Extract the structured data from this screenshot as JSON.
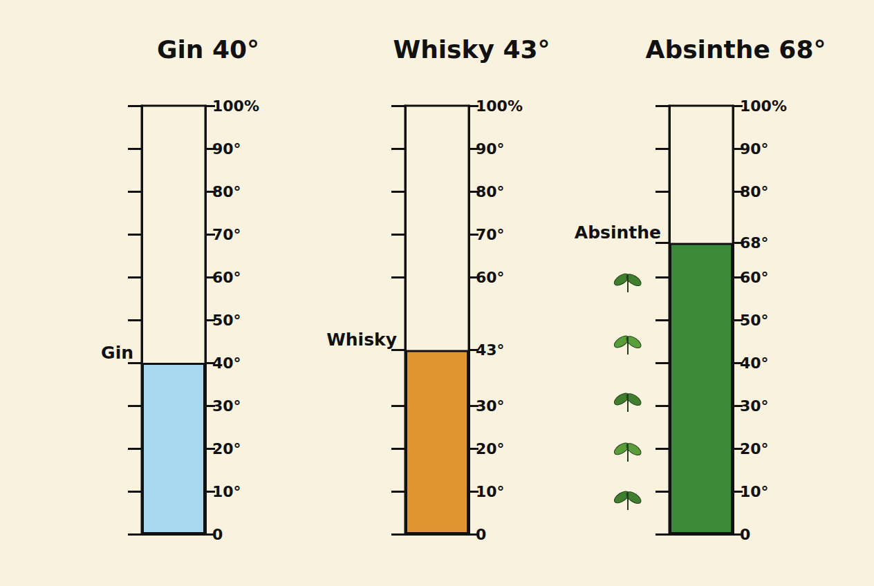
{
  "chart_data": [
    {
      "type": "bar",
      "title": "Gin 40°",
      "categories": [
        "Gin"
      ],
      "values": [
        40
      ],
      "color": "#a8d8ee",
      "ylim": [
        0,
        100
      ],
      "tick_labels": "y",
      "yticks": [
        0,
        {
          "value": 10,
          "label": "10°"
        },
        {
          "value": 20,
          "label": "20°"
        },
        {
          "value": 30,
          "label": "30°"
        },
        {
          "value": 40,
          "label": "40°"
        },
        {
          "value": 50,
          "label": "50°"
        },
        {
          "value": 60,
          "label": "60°"
        },
        {
          "value": 70,
          "label": "70°"
        },
        {
          "value": 80,
          "label": "80°"
        },
        {
          "value": 90,
          "label": "90°"
        },
        {
          "value": 100,
          "label": "100%"
        }
      ]
    },
    {
      "type": "bar",
      "title": "Whisky 43°",
      "categories": [
        "Whisky"
      ],
      "values": [
        43
      ],
      "color": "#e0962e",
      "ylim": [
        0,
        100
      ],
      "tick_labels": "y",
      "yticks": [
        0,
        {
          "value": 10,
          "label": "10°"
        },
        {
          "value": 20,
          "label": "20°"
        },
        {
          "value": 30,
          "label": "30°"
        },
        {
          "value": 43,
          "label": "43°"
        },
        {
          "value": 60,
          "label": "60°"
        },
        {
          "value": 70,
          "label": "70°"
        },
        {
          "value": 80,
          "label": "80°"
        },
        {
          "value": 90,
          "label": "90°"
        },
        {
          "value": 100,
          "label": "100%"
        }
      ]
    },
    {
      "type": "bar",
      "title": "Absinthe 68°",
      "categories": [
        "Absinthe"
      ],
      "values": [
        68
      ],
      "color": "#3a8a3a",
      "ylim": [
        0,
        100
      ],
      "tick_labels": "y",
      "yticks": [
        0,
        {
          "value": 10,
          "label": "10°"
        },
        {
          "value": 20,
          "label": "20°"
        },
        {
          "value": 30,
          "label": "30°"
        },
        {
          "value": 40,
          "label": "40°"
        },
        {
          "value": 50,
          "label": "50°"
        },
        {
          "value": 60,
          "label": "60°"
        },
        {
          "value": 68,
          "label": "68°"
        },
        {
          "value": 80,
          "label": "80°"
        },
        {
          "value": 90,
          "label": "90°"
        },
        {
          "value": 100,
          "label": "100%"
        }
      ]
    }
  ]
}
